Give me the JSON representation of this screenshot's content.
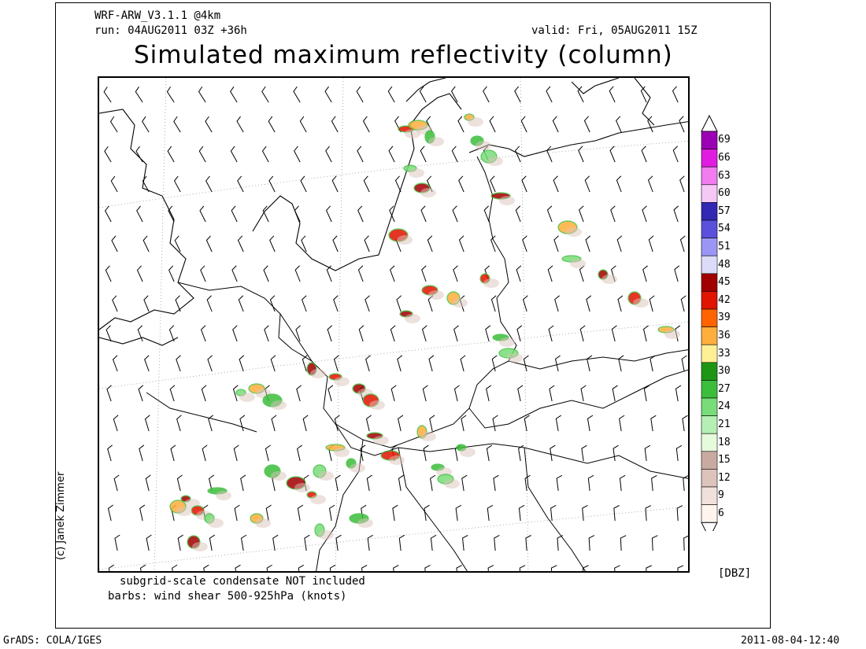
{
  "header": {
    "model": "WRF-ARW_V3.1.1 @4km",
    "run": "run: 04AUG2011 03Z +36h",
    "valid": "valid: Fri, 05AUG2011 15Z",
    "title": "Simulated maximum reflectivity (column)"
  },
  "credit": "(c) Janek Zimmer",
  "notes": {
    "line1": "subgrid-scale condensate NOT included",
    "line2": "barbs: wind shear 500-925hPa (knots)"
  },
  "footer": {
    "left": "GrADS: COLA/IGES",
    "right": "2011-08-04-12:40"
  },
  "colorbar": {
    "unit": "[DBZ]",
    "levels": [
      {
        "value": "69",
        "color": "#9b00b4"
      },
      {
        "value": "66",
        "color": "#e01ce0"
      },
      {
        "value": "63",
        "color": "#f07cf0"
      },
      {
        "value": "60",
        "color": "#f5c8f5"
      },
      {
        "value": "57",
        "color": "#3228b4"
      },
      {
        "value": "54",
        "color": "#5a50dc"
      },
      {
        "value": "51",
        "color": "#9b96f5"
      },
      {
        "value": "48",
        "color": "#dcdcfa"
      },
      {
        "value": "45",
        "color": "#a00000"
      },
      {
        "value": "42",
        "color": "#e11400"
      },
      {
        "value": "39",
        "color": "#ff6400"
      },
      {
        "value": "36",
        "color": "#ffaf3c"
      },
      {
        "value": "33",
        "color": "#fff096"
      },
      {
        "value": "30",
        "color": "#1e9614"
      },
      {
        "value": "27",
        "color": "#3cbe3c"
      },
      {
        "value": "24",
        "color": "#78dc78"
      },
      {
        "value": "21",
        "color": "#b4f0b4"
      },
      {
        "value": "18",
        "color": "#e6fadc"
      },
      {
        "value": "15",
        "color": "#c8aaa0"
      },
      {
        "value": "12",
        "color": "#dcc3bc"
      },
      {
        "value": "9",
        "color": "#f0e1dc"
      },
      {
        "value": "6",
        "color": "#fff5ee"
      }
    ]
  },
  "map_icons": [
    "coastline-icon",
    "border-icon",
    "wind-barb-icon",
    "reflectivity-cell-icon"
  ]
}
